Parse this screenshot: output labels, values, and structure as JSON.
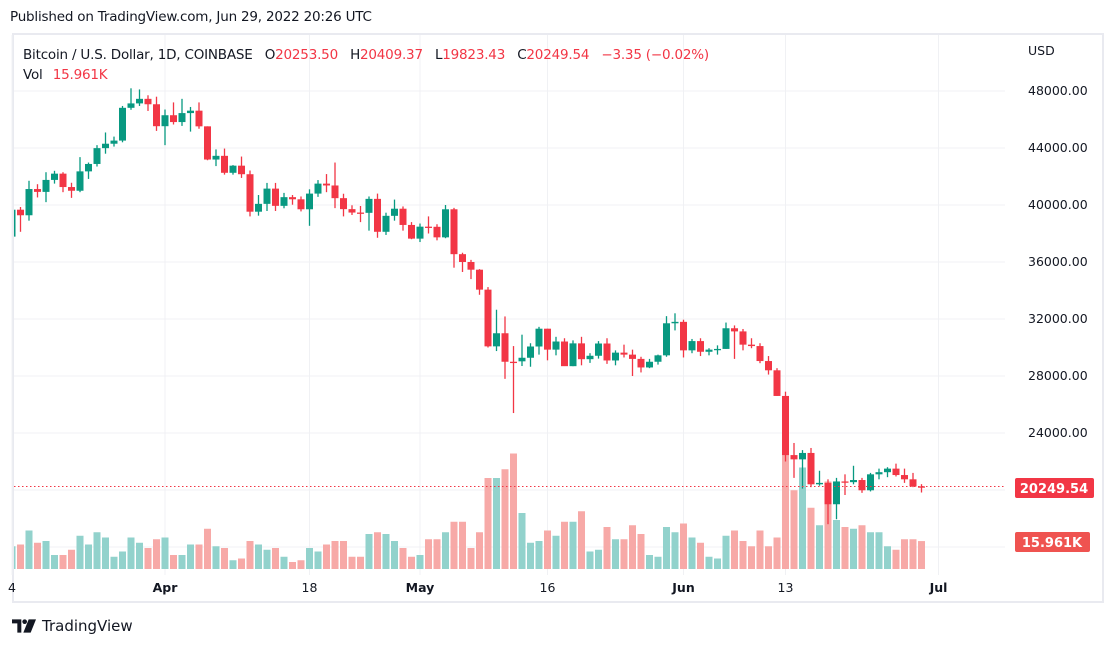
{
  "header": {
    "published": "Published on TradingView.com, Jun 29, 2022 20:26 UTC"
  },
  "legend": {
    "symbol": "Bitcoin / U.S. Dollar, 1D, COINBASE",
    "open_label": "O",
    "open": "20253.50",
    "high_label": "H",
    "high": "20409.37",
    "low_label": "L",
    "low": "19823.43",
    "close_label": "C",
    "close": "20249.54",
    "change": "−3.35 (−0.02%)",
    "vol_label": "Vol",
    "vol": "15.961K"
  },
  "price_axis": {
    "currency": "USD",
    "last_price_label": "20249.54",
    "last_volume_label": "15.961K"
  },
  "footer": {
    "brand": "TradingView"
  },
  "colors": {
    "up": "#089981",
    "down": "#f23645",
    "vol_up": "#92d2cc",
    "vol_down": "#f7a9a7",
    "grid": "#f0f1f4",
    "last_price": "#f23645",
    "vol_label": "#ef5350"
  },
  "chart_data": {
    "type": "candlestick",
    "title": "Bitcoin / U.S. Dollar, 1D, COINBASE",
    "ylabel": "USD",
    "ylim": [
      14500,
      49500
    ],
    "yticks": [
      48000,
      44000,
      40000,
      36000,
      32000,
      28000,
      24000
    ],
    "ygrid": [
      48000,
      44000,
      40000,
      36000,
      32000,
      28000,
      24000,
      20000,
      16000
    ],
    "grid": true,
    "last_price": 20249.54,
    "xticks": [
      {
        "label": "4",
        "day": 0,
        "bold": false
      },
      {
        "label": "Apr",
        "day": 18,
        "bold": true
      },
      {
        "label": "18",
        "day": 35,
        "bold": false
      },
      {
        "label": "May",
        "day": 48,
        "bold": true
      },
      {
        "label": "16",
        "day": 63,
        "bold": false
      },
      {
        "label": "Jun",
        "day": 79,
        "bold": true
      },
      {
        "label": "13",
        "day": 91,
        "bold": false
      },
      {
        "label": "Jul",
        "day": 109,
        "bold": true
      }
    ],
    "volume_unit": "K",
    "fields": [
      "open",
      "high",
      "low",
      "close",
      "volume"
    ],
    "candles": [
      [
        37780,
        39900,
        37600,
        39670,
        13
      ],
      [
        39670,
        39860,
        38120,
        39280,
        14
      ],
      [
        39280,
        41700,
        38900,
        41120,
        22
      ],
      [
        41120,
        41460,
        40530,
        40920,
        15
      ],
      [
        40920,
        42300,
        40200,
        41760,
        16
      ],
      [
        41760,
        42400,
        41500,
        42200,
        8
      ],
      [
        42200,
        42300,
        40900,
        41260,
        8
      ],
      [
        41260,
        41560,
        40500,
        41000,
        11
      ],
      [
        41000,
        43360,
        40900,
        42360,
        19
      ],
      [
        42360,
        42980,
        41830,
        42880,
        14
      ],
      [
        42880,
        44200,
        42700,
        43990,
        21
      ],
      [
        43990,
        45090,
        43600,
        44300,
        18
      ],
      [
        44300,
        44800,
        44100,
        44520,
        7
      ],
      [
        44520,
        46950,
        44400,
        46820,
        10
      ],
      [
        46820,
        48190,
        46680,
        47130,
        18
      ],
      [
        47130,
        48110,
        46950,
        47450,
        15
      ],
      [
        47450,
        47700,
        46600,
        47070,
        12
      ],
      [
        47070,
        47600,
        45200,
        45530,
        17
      ],
      [
        45530,
        46700,
        44200,
        46300,
        18
      ],
      [
        46300,
        47200,
        45650,
        45820,
        8
      ],
      [
        45820,
        47450,
        45550,
        46450,
        8
      ],
      [
        46450,
        46880,
        45150,
        46620,
        14
      ],
      [
        46620,
        47200,
        45350,
        45520,
        14
      ],
      [
        45520,
        45520,
        43140,
        43190,
        23
      ],
      [
        43190,
        43900,
        42730,
        43450,
        13
      ],
      [
        43450,
        43960,
        42130,
        42260,
        12
      ],
      [
        42260,
        42800,
        42130,
        42760,
        5
      ],
      [
        42760,
        43400,
        41900,
        42160,
        6
      ],
      [
        42160,
        42420,
        39200,
        39530,
        16
      ],
      [
        39530,
        40700,
        39250,
        40080,
        14
      ],
      [
        40080,
        41550,
        39580,
        41150,
        11
      ],
      [
        41150,
        41550,
        39580,
        39940,
        12
      ],
      [
        39940,
        40850,
        39770,
        40550,
        7
      ],
      [
        40550,
        40700,
        40020,
        40400,
        4
      ],
      [
        40400,
        40600,
        39550,
        39700,
        5
      ],
      [
        39700,
        41100,
        38540,
        40800,
        12
      ],
      [
        40800,
        41750,
        40570,
        41500,
        10
      ],
      [
        41500,
        42170,
        40900,
        41370,
        14
      ],
      [
        41370,
        42980,
        39780,
        40480,
        16
      ],
      [
        40480,
        40790,
        39200,
        39710,
        16
      ],
      [
        39710,
        39980,
        39300,
        39470,
        7
      ],
      [
        39470,
        39930,
        38800,
        39450,
        7
      ],
      [
        39450,
        40600,
        38200,
        40430,
        20
      ],
      [
        40430,
        40800,
        37700,
        38120,
        21
      ],
      [
        38120,
        39460,
        37900,
        39240,
        20
      ],
      [
        39240,
        40380,
        38900,
        39740,
        16
      ],
      [
        39740,
        39900,
        38200,
        38600,
        12
      ],
      [
        38600,
        38800,
        37600,
        37640,
        7
      ],
      [
        37640,
        38700,
        37400,
        38480,
        8
      ],
      [
        38480,
        39200,
        38000,
        38470,
        17
      ],
      [
        38470,
        38650,
        37520,
        37730,
        17
      ],
      [
        37730,
        40000,
        37670,
        39700,
        21
      ],
      [
        39700,
        39800,
        35600,
        36550,
        27
      ],
      [
        36550,
        36650,
        35300,
        36000,
        27
      ],
      [
        36000,
        36150,
        34800,
        35460,
        12
      ],
      [
        35460,
        35500,
        33700,
        34060,
        21
      ],
      [
        34060,
        34240,
        30000,
        30080,
        52
      ],
      [
        30080,
        32650,
        29750,
        31000,
        52
      ],
      [
        31000,
        32180,
        27800,
        29000,
        57
      ],
      [
        29000,
        30100,
        25400,
        28960,
        66
      ],
      [
        29030,
        30900,
        28700,
        29280,
        32
      ],
      [
        29280,
        30300,
        28650,
        30070,
        15
      ],
      [
        30070,
        31450,
        29500,
        31320,
        16
      ],
      [
        31320,
        31320,
        29100,
        29850,
        22
      ],
      [
        29850,
        30750,
        29450,
        30420,
        19
      ],
      [
        30420,
        30650,
        28700,
        28690,
        27
      ],
      [
        28690,
        30500,
        28690,
        30290,
        27
      ],
      [
        30290,
        30750,
        28750,
        29180,
        33
      ],
      [
        29180,
        29600,
        28920,
        29420,
        10
      ],
      [
        29420,
        30450,
        29220,
        30280,
        11
      ],
      [
        30280,
        30650,
        28850,
        29090,
        24
      ],
      [
        29090,
        29800,
        28750,
        29640,
        17
      ],
      [
        29640,
        30200,
        29300,
        29500,
        17
      ],
      [
        29500,
        29850,
        28000,
        29200,
        25
      ],
      [
        29200,
        29350,
        28250,
        28600,
        20
      ],
      [
        28600,
        29200,
        28550,
        29000,
        8
      ],
      [
        29000,
        29500,
        28800,
        29450,
        7
      ],
      [
        29450,
        32200,
        29350,
        31700,
        24
      ],
      [
        31700,
        32400,
        31200,
        31800,
        21
      ],
      [
        31800,
        31950,
        29300,
        29800,
        26
      ],
      [
        29800,
        30600,
        29600,
        30450,
        18
      ],
      [
        30450,
        30650,
        29400,
        29700,
        15
      ],
      [
        29700,
        29950,
        29450,
        29850,
        7
      ],
      [
        29850,
        30150,
        29500,
        29900,
        6
      ],
      [
        29900,
        31750,
        29900,
        31350,
        19
      ],
      [
        31350,
        31550,
        29200,
        31130,
        22
      ],
      [
        31130,
        31300,
        29800,
        30200,
        16
      ],
      [
        30200,
        30650,
        29950,
        30100,
        13
      ],
      [
        30100,
        30300,
        28900,
        29050,
        22
      ],
      [
        29050,
        29400,
        28100,
        28400,
        13
      ],
      [
        28400,
        28550,
        26600,
        26600,
        18
      ],
      [
        26600,
        26900,
        22000,
        22450,
        77
      ],
      [
        22450,
        23300,
        20850,
        22150,
        45
      ],
      [
        22150,
        22800,
        20100,
        22600,
        58
      ],
      [
        22600,
        22950,
        20200,
        20400,
        35
      ],
      [
        20400,
        21350,
        20300,
        20500,
        25
      ],
      [
        20500,
        20750,
        17600,
        19000,
        50
      ],
      [
        19000,
        20850,
        17950,
        20600,
        28
      ],
      [
        20600,
        21100,
        19650,
        20580,
        24
      ],
      [
        20550,
        21700,
        20400,
        20700,
        23
      ],
      [
        20700,
        20850,
        19800,
        19980,
        25
      ],
      [
        19980,
        21200,
        19900,
        21100,
        21
      ],
      [
        21100,
        21500,
        20750,
        21250,
        21
      ],
      [
        21250,
        21600,
        20900,
        21500,
        13
      ],
      [
        21500,
        21850,
        20950,
        21050,
        11
      ],
      [
        21050,
        21500,
        20500,
        20750,
        17
      ],
      [
        20750,
        21200,
        20200,
        20250,
        17
      ],
      [
        20253.5,
        20409.37,
        19823.43,
        20249.54,
        15.961
      ]
    ]
  }
}
